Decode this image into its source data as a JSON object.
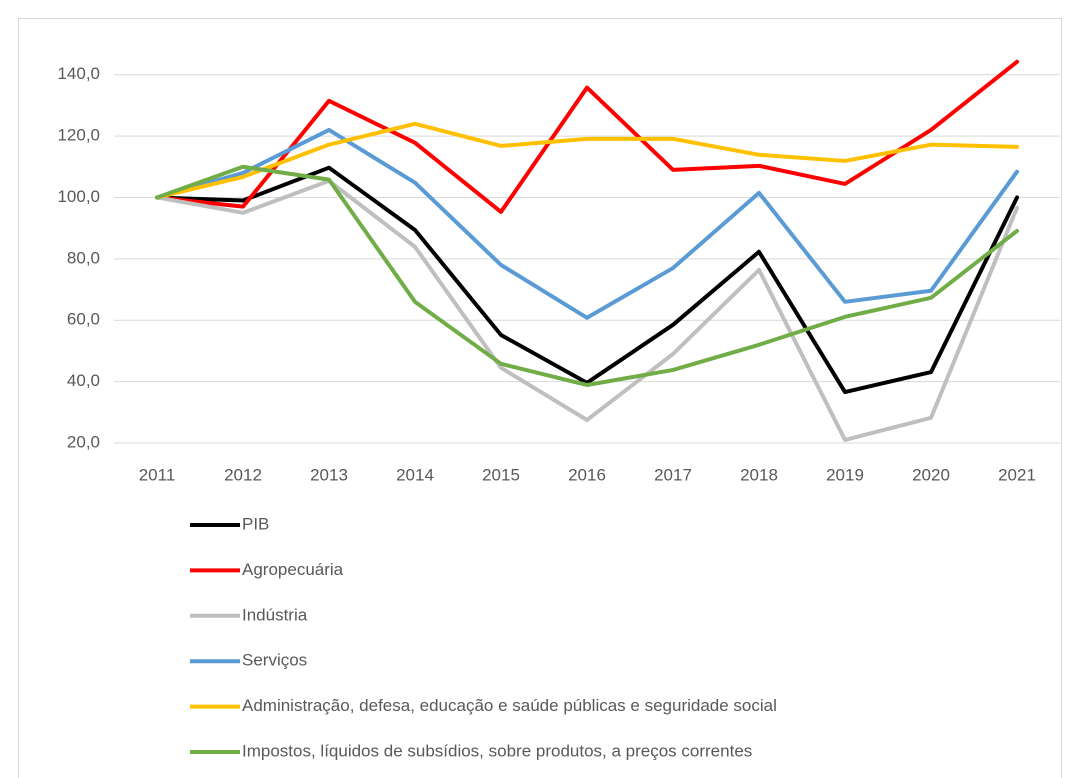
{
  "chart_data": {
    "type": "line",
    "categories": [
      "2011",
      "2012",
      "2013",
      "2014",
      "2015",
      "2016",
      "2017",
      "2018",
      "2019",
      "2020",
      "2021"
    ],
    "series": [
      {
        "name": "PIB",
        "color": "#000000",
        "values": [
          100,
          99,
          109.7,
          89.4,
          55.2,
          39.6,
          58.5,
          82.3,
          36.6,
          43.1,
          100
        ]
      },
      {
        "name": "Agropecuária",
        "color": "#ff0000",
        "values": [
          100,
          97,
          131.5,
          117.8,
          95.3,
          135.8,
          109,
          110.3,
          104.4,
          122,
          144.2
        ]
      },
      {
        "name": "Indústria",
        "color": "#bfbfbf",
        "values": [
          100,
          95,
          105.4,
          83.9,
          44.5,
          27.5,
          49,
          76.4,
          21,
          28.2,
          96.6
        ]
      },
      {
        "name": "Serviços",
        "color": "#5b9bd5",
        "values": [
          100,
          108,
          122,
          104.8,
          78,
          60.8,
          77,
          101.5,
          66,
          69.6,
          108.4
        ]
      },
      {
        "name": "Administração, defesa, educação e saúde públicas e seguridade social",
        "color": "#ffc000",
        "values": [
          100,
          106.7,
          117.2,
          124,
          116.8,
          119.1,
          119.1,
          113.9,
          111.9,
          117.2,
          116.5
        ]
      },
      {
        "name": "Impostos, líquidos de subsídios, sobre produtos, a preços correntes",
        "color": "#70ad47",
        "values": [
          100,
          110,
          105.8,
          66,
          45.8,
          38.9,
          43.8,
          52,
          61.1,
          67.3,
          89.1
        ]
      }
    ],
    "ylim": [
      20,
      150
    ],
    "yticks": [
      {
        "value": 20,
        "label": "20,0"
      },
      {
        "value": 40,
        "label": "40,0"
      },
      {
        "value": 60,
        "label": "60,0"
      },
      {
        "value": 80,
        "label": "80,0"
      },
      {
        "value": 100,
        "label": "100,0"
      },
      {
        "value": 120,
        "label": "120,0"
      },
      {
        "value": 140,
        "label": "140,0"
      }
    ],
    "grid": true
  }
}
